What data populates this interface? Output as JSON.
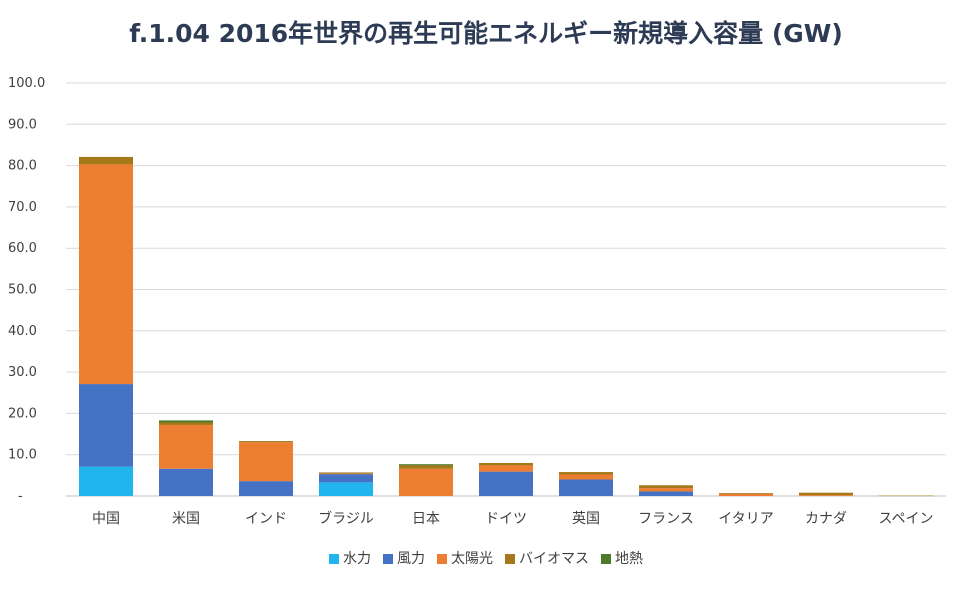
{
  "chart_data": {
    "type": "bar",
    "stacked": true,
    "title": "f.1.04  2016年世界の再生可能エネルギー新規導入容量 (GW)",
    "xlabel": "",
    "ylabel": "",
    "ylim": [
      0,
      100
    ],
    "yticks": [
      {
        "value": 0,
        "label": "-"
      },
      {
        "value": 10,
        "label": "10.0"
      },
      {
        "value": 20,
        "label": "20.0"
      },
      {
        "value": 30,
        "label": "30.0"
      },
      {
        "value": 40,
        "label": "40.0"
      },
      {
        "value": 50,
        "label": "50.0"
      },
      {
        "value": 60,
        "label": "60.0"
      },
      {
        "value": 70,
        "label": "70.0"
      },
      {
        "value": 80,
        "label": "80.0"
      },
      {
        "value": 90,
        "label": "90.0"
      },
      {
        "value": 100,
        "label": "100.0"
      }
    ],
    "grid": true,
    "legend_position": "bottom",
    "categories": [
      "中国",
      "米国",
      "インド",
      "ブラジル",
      "日本",
      "ドイツ",
      "英国",
      "フランス",
      "イタリア",
      "カナダ",
      "スペイン"
    ],
    "series": [
      {
        "name": "水力",
        "color": "#21b5ef",
        "values": [
          7.1,
          0.0,
          0.0,
          3.3,
          0.0,
          0.0,
          0.0,
          0.0,
          0.0,
          0.0,
          0.0
        ]
      },
      {
        "name": "風力",
        "color": "#4472c4",
        "values": [
          20.0,
          6.6,
          3.6,
          2.0,
          0.0,
          5.9,
          4.0,
          1.1,
          0.0,
          0.0,
          0.0
        ]
      },
      {
        "name": "太陽光",
        "color": "#ed7d31",
        "values": [
          53.2,
          10.6,
          9.4,
          0.1,
          6.6,
          1.5,
          1.2,
          0.8,
          0.5,
          0.2,
          0.0
        ]
      },
      {
        "name": "バイオマス",
        "color": "#a5781a",
        "values": [
          1.8,
          0.6,
          0.3,
          0.3,
          0.8,
          0.6,
          0.6,
          0.7,
          0.2,
          0.6,
          0.1
        ]
      },
      {
        "name": "地熱",
        "color": "#4e7a2a",
        "values": [
          0.0,
          0.5,
          0.0,
          0.0,
          0.3,
          0.0,
          0.0,
          0.0,
          0.0,
          0.0,
          0.0
        ]
      }
    ]
  }
}
